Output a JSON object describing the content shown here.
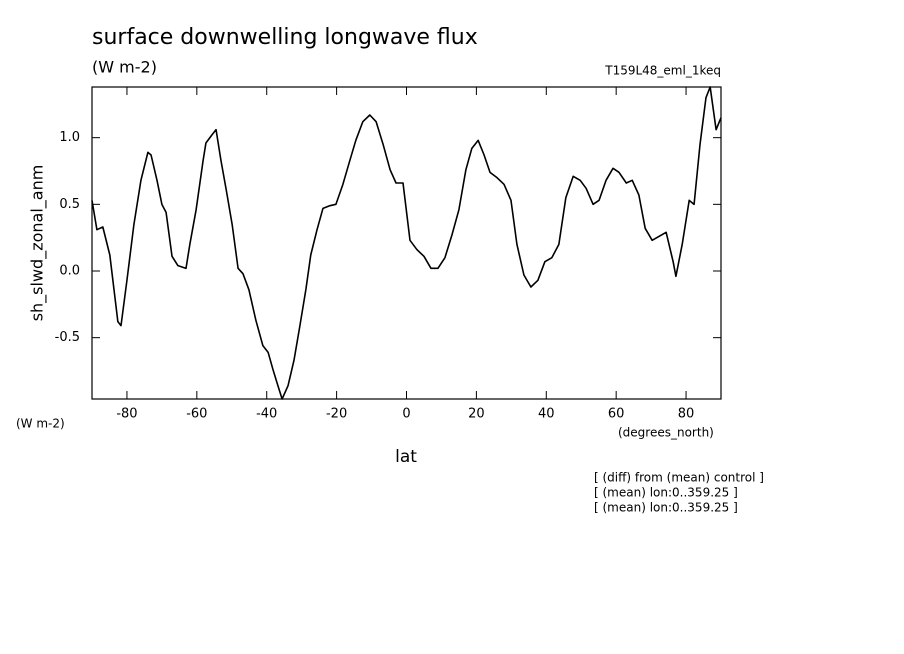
{
  "chart_data": {
    "type": "line",
    "title": "surface downwelling longwave flux",
    "subtitle": "(W m-2)",
    "annotation": "T159L48_eml_1keq",
    "ylabel": "sh_slwd_zonal_anm",
    "yunits": "(W m-2)",
    "xlabel": "lat",
    "xunits": "(degrees_north)",
    "notes": [
      "[ (diff) from (mean) control ]",
      "[ (mean) lon:0..359.25 ]",
      "[ (mean) lon:0..359.25 ]"
    ],
    "color": "#000000",
    "xlim": [
      -90,
      90
    ],
    "ylim": [
      -0.96,
      1.38
    ],
    "xticks": [
      -80,
      -60,
      -40,
      -20,
      0,
      20,
      40,
      60,
      80
    ],
    "yticks": [
      -0.5,
      {
        "value": 0,
        "label": "0.0"
      },
      0.5,
      {
        "value": 1,
        "label": "1.0"
      }
    ],
    "x": [
      -90,
      -88.6,
      -86.9,
      -84.9,
      -82.6,
      -81.7,
      -80,
      -78,
      -76,
      -74,
      -73.1,
      -71.4,
      -70,
      -68.8,
      -67.1,
      -65.4,
      -63.1,
      -62,
      -60.2,
      -58.2,
      -57.4,
      -55.7,
      -54.5,
      -53.1,
      -51.6,
      -49.9,
      -48.2,
      -46.8,
      -45.1,
      -43.1,
      -41.1,
      -39.6,
      -38.2,
      -36.8,
      -35.6,
      -33.9,
      -32.2,
      -30.5,
      -28.8,
      -27.4,
      -25.6,
      -23.9,
      -21.9,
      -20.2,
      -18.2,
      -16.2,
      -14.5,
      -12.5,
      -10.5,
      -8.7,
      -6.7,
      -4.7,
      -3.0,
      -1.0,
      1.0,
      3.0,
      5.0,
      7.0,
      9.0,
      11.0,
      13.0,
      15.0,
      17.0,
      18.7,
      20.5,
      22.2,
      23.9,
      25.9,
      27.9,
      29.9,
      31.6,
      33.6,
      35.6,
      37.6,
      39.6,
      41.6,
      43.6,
      45.6,
      47.7,
      49.7,
      51.4,
      53.4,
      55.1,
      57.1,
      59.1,
      60.8,
      62.9,
      64.6,
      66.5,
      68.3,
      70.3,
      72.3,
      74.3,
      76.3,
      77.1,
      78.9,
      80.9,
      82.3,
      84.0,
      85.7,
      86.9,
      88.6,
      90
    ],
    "values": [
      0.53,
      0.31,
      0.33,
      0.12,
      -0.38,
      -0.41,
      -0.07,
      0.35,
      0.68,
      0.89,
      0.87,
      0.68,
      0.5,
      0.44,
      0.11,
      0.04,
      0.02,
      0.2,
      0.46,
      0.83,
      0.96,
      1.02,
      1.06,
      0.83,
      0.61,
      0.35,
      0.02,
      -0.02,
      -0.14,
      -0.37,
      -0.56,
      -0.61,
      -0.74,
      -0.86,
      -0.96,
      -0.86,
      -0.67,
      -0.41,
      -0.14,
      0.12,
      0.31,
      0.47,
      0.49,
      0.5,
      0.65,
      0.83,
      0.98,
      1.12,
      1.17,
      1.12,
      0.95,
      0.76,
      0.66,
      0.66,
      0.23,
      0.16,
      0.11,
      0.02,
      0.02,
      0.1,
      0.27,
      0.46,
      0.76,
      0.92,
      0.98,
      0.87,
      0.74,
      0.7,
      0.65,
      0.53,
      0.2,
      -0.03,
      -0.12,
      -0.07,
      0.07,
      0.1,
      0.2,
      0.55,
      0.71,
      0.68,
      0.62,
      0.5,
      0.53,
      0.68,
      0.77,
      0.74,
      0.66,
      0.68,
      0.57,
      0.32,
      0.23,
      0.26,
      0.29,
      0.07,
      -0.04,
      0.2,
      0.53,
      0.5,
      0.95,
      1.3,
      1.38,
      1.06,
      1.15
    ]
  }
}
